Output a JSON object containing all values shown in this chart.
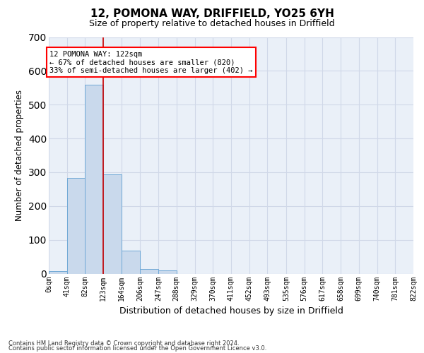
{
  "title": "12, POMONA WAY, DRIFFIELD, YO25 6YH",
  "subtitle": "Size of property relative to detached houses in Driffield",
  "xlabel": "Distribution of detached houses by size in Driffield",
  "ylabel": "Number of detached properties",
  "bar_values": [
    8,
    284,
    558,
    294,
    68,
    13,
    9,
    0,
    0,
    0,
    0,
    0,
    0,
    0,
    0,
    0,
    0,
    0,
    0,
    0
  ],
  "bin_edges": [
    0,
    41,
    82,
    123,
    164,
    206,
    247,
    288,
    329,
    370,
    411,
    452,
    493,
    535,
    576,
    617,
    658,
    699,
    740,
    781,
    822
  ],
  "tick_labels": [
    "0sqm",
    "41sqm",
    "82sqm",
    "123sqm",
    "164sqm",
    "206sqm",
    "247sqm",
    "288sqm",
    "329sqm",
    "370sqm",
    "411sqm",
    "452sqm",
    "493sqm",
    "535sqm",
    "576sqm",
    "617sqm",
    "658sqm",
    "699sqm",
    "740sqm",
    "781sqm",
    "822sqm"
  ],
  "bar_color": "#c9d9ec",
  "bar_edge_color": "#6fa8d6",
  "grid_color": "#d0d8e8",
  "background_color": "#eaf0f8",
  "property_line_x": 122,
  "annotation_line1": "12 POMONA WAY: 122sqm",
  "annotation_line2": "← 67% of detached houses are smaller (820)",
  "annotation_line3": "33% of semi-detached houses are larger (402) →",
  "annotation_box_color": "white",
  "annotation_box_edge": "red",
  "property_line_color": "#cc0000",
  "ylim": [
    0,
    700
  ],
  "yticks": [
    0,
    100,
    200,
    300,
    400,
    500,
    600,
    700
  ],
  "footnote1": "Contains HM Land Registry data © Crown copyright and database right 2024.",
  "footnote2": "Contains public sector information licensed under the Open Government Licence v3.0.",
  "title_fontsize": 11,
  "subtitle_fontsize": 9,
  "ylabel_fontsize": 8.5,
  "xlabel_fontsize": 9,
  "tick_fontsize": 7,
  "annot_fontsize": 7.5,
  "footnote_fontsize": 6
}
